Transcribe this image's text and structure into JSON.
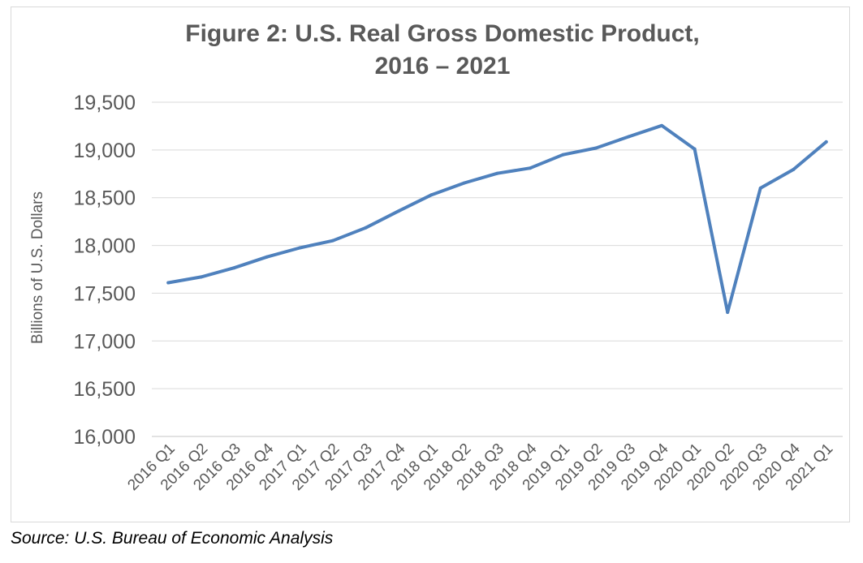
{
  "chart_data": {
    "type": "line",
    "title_line1": "Figure 2: U.S. Real Gross Domestic Product,",
    "title_line2": "2016 – 2021",
    "xlabel": "",
    "ylabel": "Billions of U.S. Dollars",
    "ylim": [
      16000,
      19500
    ],
    "ytick_values": [
      16000,
      16500,
      17000,
      17500,
      18000,
      18500,
      19000,
      19500
    ],
    "ytick_labels": [
      "16,000",
      "16,500",
      "17,000",
      "17,500",
      "18,000",
      "18,500",
      "19,000",
      "19,500"
    ],
    "grid": true,
    "legend": "none",
    "categories": [
      "2016 Q1",
      "2016 Q2",
      "2016 Q3",
      "2016 Q4",
      "2017 Q1",
      "2017 Q2",
      "2017 Q3",
      "2017 Q4",
      "2018 Q1",
      "2018 Q2",
      "2018 Q3",
      "2018 Q4",
      "2019 Q1",
      "2019 Q2",
      "2019 Q3",
      "2019 Q4",
      "2020 Q1",
      "2020 Q2",
      "2020 Q3",
      "2020 Q4",
      "2021 Q1"
    ],
    "series": [
      {
        "values": [
          17610,
          17670,
          17765,
          17880,
          17975,
          18050,
          18185,
          18360,
          18530,
          18655,
          18755,
          18810,
          18950,
          19020,
          19140,
          19255,
          19010,
          17300,
          18600,
          18795,
          19085
        ],
        "color": "#4f81bd"
      }
    ]
  },
  "source_note": "Source: U.S. Bureau of Economic Analysis"
}
